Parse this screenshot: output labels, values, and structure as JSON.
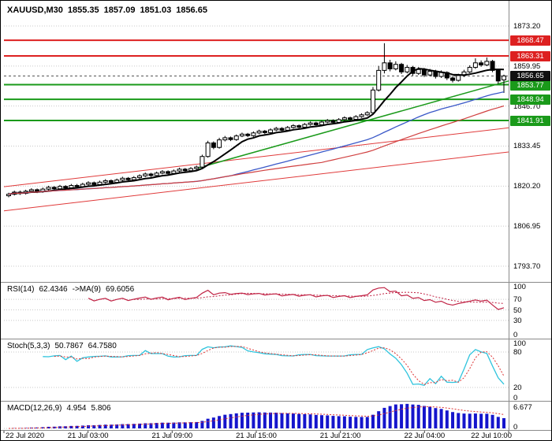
{
  "title": {
    "symbol": "XAUUSD,M30",
    "open": "1855.35",
    "high": "1857.09",
    "low": "1851.03",
    "close": "1856.65"
  },
  "colors": {
    "resistance": "#dd2020",
    "support": "#1a9a1a",
    "current": "#101010",
    "grid": "#c8c8c8",
    "candle_up": "#ffffff",
    "candle_down": "#000000",
    "candle_outline": "#000000"
  },
  "time_axis": {
    "labels": [
      "22 Jul 2020",
      "21 Jul 03:00",
      "21 Jul 09:00",
      "21 Jul 15:00",
      "21 Jul 21:00",
      "22 Jul 04:00",
      "22 Jul 10:00"
    ]
  },
  "chart_data": {
    "type": "candlestick",
    "symbol": "XAUUSD",
    "timeframe": "M30",
    "main": {
      "price_min": 1789.0,
      "price_max": 1880.5,
      "axis_labels": [
        "1873.20",
        "1859.95",
        "1846.70",
        "1833.45",
        "1820.20",
        "1806.95",
        "1793.70"
      ],
      "levels": {
        "resistance": [
          {
            "price": 1868.47,
            "label": "1868.47"
          },
          {
            "price": 1863.31,
            "label": "1863.31"
          }
        ],
        "support": [
          {
            "price": 1853.77,
            "label": "1853.77"
          },
          {
            "price": 1848.94,
            "label": "1848.94"
          },
          {
            "price": 1841.91,
            "label": "1841.91"
          }
        ],
        "current": {
          "price": 1856.65,
          "label": "1856.65"
        }
      },
      "trendlines": [
        {
          "x1": 0,
          "p1": 1820.0,
          "x2": 1,
          "p2": 1839.5,
          "color": "#e03a3a",
          "width": 1
        },
        {
          "x1": 0,
          "p1": 1812.0,
          "x2": 1,
          "p2": 1831.5,
          "color": "#e03a3a",
          "width": 1
        },
        {
          "x1": 0.38,
          "p1": 1826.0,
          "x2": 1,
          "p2": 1855.0,
          "color": "#1a9a1a",
          "width": 1.5
        }
      ],
      "moving_averages": [
        {
          "period": 8,
          "color": "#000000",
          "width": 2
        },
        {
          "period": 40,
          "color": "#3a58c8",
          "width": 1.3
        },
        {
          "period": 56,
          "color": "#d04040",
          "width": 1.2
        }
      ],
      "candles": [
        [
          1817.0,
          1818.0,
          1816.5,
          1817.5
        ],
        [
          1817.5,
          1818.7,
          1817.1,
          1818.2
        ],
        [
          1818.2,
          1818.7,
          1817.3,
          1817.8
        ],
        [
          1817.8,
          1819.0,
          1817.4,
          1818.5
        ],
        [
          1818.5,
          1819.5,
          1818.1,
          1819.0
        ],
        [
          1819.0,
          1819.4,
          1817.9,
          1818.4
        ],
        [
          1818.4,
          1819.7,
          1818.0,
          1819.2
        ],
        [
          1819.2,
          1820.3,
          1818.8,
          1819.8
        ],
        [
          1819.8,
          1820.2,
          1818.9,
          1819.3
        ],
        [
          1819.3,
          1820.6,
          1818.9,
          1820.1
        ],
        [
          1820.1,
          1820.5,
          1819.2,
          1819.6
        ],
        [
          1819.6,
          1820.9,
          1819.2,
          1820.4
        ],
        [
          1820.4,
          1820.9,
          1819.5,
          1820.0
        ],
        [
          1820.0,
          1821.3,
          1819.6,
          1820.8
        ],
        [
          1820.8,
          1821.8,
          1820.4,
          1821.3
        ],
        [
          1821.3,
          1821.7,
          1820.2,
          1820.7
        ],
        [
          1820.7,
          1822.0,
          1820.3,
          1821.5
        ],
        [
          1821.5,
          1822.5,
          1821.1,
          1822.0
        ],
        [
          1822.0,
          1822.4,
          1820.9,
          1821.4
        ],
        [
          1821.4,
          1822.7,
          1821.0,
          1822.2
        ],
        [
          1822.2,
          1823.3,
          1821.8,
          1822.8
        ],
        [
          1822.8,
          1823.2,
          1821.8,
          1822.3
        ],
        [
          1822.3,
          1823.5,
          1821.9,
          1823.0
        ],
        [
          1823.0,
          1824.1,
          1822.6,
          1823.6
        ],
        [
          1823.6,
          1824.7,
          1823.2,
          1824.2
        ],
        [
          1824.2,
          1824.6,
          1823.2,
          1823.7
        ],
        [
          1823.7,
          1825.0,
          1823.3,
          1824.5
        ],
        [
          1824.5,
          1825.5,
          1824.1,
          1825.0
        ],
        [
          1825.0,
          1825.4,
          1823.9,
          1824.4
        ],
        [
          1824.4,
          1825.7,
          1824.0,
          1825.2
        ],
        [
          1825.2,
          1826.3,
          1824.8,
          1825.8
        ],
        [
          1825.8,
          1826.2,
          1824.8,
          1825.3
        ],
        [
          1825.3,
          1826.5,
          1824.9,
          1826.0
        ],
        [
          1826.0,
          1827.0,
          1825.6,
          1826.5
        ],
        [
          1826.5,
          1830.6,
          1826.2,
          1830.0
        ],
        [
          1830.0,
          1835.2,
          1829.6,
          1834.5
        ],
        [
          1834.5,
          1835.0,
          1832.4,
          1833.0
        ],
        [
          1833.0,
          1836.2,
          1832.6,
          1835.5
        ],
        [
          1835.5,
          1836.8,
          1835.0,
          1836.2
        ],
        [
          1836.2,
          1836.6,
          1835.1,
          1835.6
        ],
        [
          1835.6,
          1837.3,
          1835.2,
          1836.8
        ],
        [
          1836.8,
          1837.9,
          1836.4,
          1837.4
        ],
        [
          1837.4,
          1837.8,
          1836.4,
          1836.9
        ],
        [
          1836.9,
          1838.3,
          1836.5,
          1837.8
        ],
        [
          1837.8,
          1838.9,
          1837.4,
          1838.4
        ],
        [
          1838.4,
          1838.8,
          1837.4,
          1837.9
        ],
        [
          1837.9,
          1839.3,
          1837.5,
          1838.8
        ],
        [
          1838.8,
          1839.8,
          1838.4,
          1839.3
        ],
        [
          1839.3,
          1839.7,
          1838.2,
          1838.7
        ],
        [
          1838.7,
          1840.1,
          1838.3,
          1839.6
        ],
        [
          1839.6,
          1840.7,
          1839.2,
          1840.2
        ],
        [
          1840.2,
          1840.6,
          1839.2,
          1839.7
        ],
        [
          1839.7,
          1841.1,
          1839.3,
          1840.6
        ],
        [
          1840.6,
          1841.6,
          1840.2,
          1841.1
        ],
        [
          1841.1,
          1841.5,
          1840.0,
          1840.5
        ],
        [
          1840.5,
          1841.9,
          1840.1,
          1841.4
        ],
        [
          1841.4,
          1842.4,
          1841.0,
          1841.9
        ],
        [
          1841.9,
          1842.3,
          1840.8,
          1841.3
        ],
        [
          1841.3,
          1842.7,
          1840.9,
          1842.2
        ],
        [
          1842.2,
          1843.3,
          1841.8,
          1842.8
        ],
        [
          1842.8,
          1843.2,
          1841.8,
          1842.3
        ],
        [
          1842.3,
          1843.7,
          1841.9,
          1843.2
        ],
        [
          1843.2,
          1844.3,
          1842.8,
          1843.8
        ],
        [
          1843.8,
          1845.0,
          1843.4,
          1844.5
        ],
        [
          1844.5,
          1853.0,
          1844.0,
          1852.0
        ],
        [
          1852.0,
          1860.0,
          1851.5,
          1858.5
        ],
        [
          1858.5,
          1867.5,
          1857.5,
          1861.0
        ],
        [
          1861.0,
          1862.0,
          1858.2,
          1859.0
        ],
        [
          1859.0,
          1861.5,
          1858.5,
          1860.5
        ],
        [
          1860.5,
          1861.0,
          1857.3,
          1858.0
        ],
        [
          1858.0,
          1860.3,
          1857.5,
          1859.5
        ],
        [
          1859.5,
          1860.0,
          1856.8,
          1857.5
        ],
        [
          1857.5,
          1859.6,
          1857.0,
          1858.8
        ],
        [
          1858.8,
          1859.3,
          1856.3,
          1857.0
        ],
        [
          1857.0,
          1859.0,
          1856.5,
          1858.2
        ],
        [
          1858.2,
          1858.7,
          1855.8,
          1856.5
        ],
        [
          1856.5,
          1858.5,
          1856.0,
          1857.8
        ],
        [
          1857.8,
          1858.2,
          1855.3,
          1856.0
        ],
        [
          1856.0,
          1856.6,
          1854.5,
          1855.2
        ],
        [
          1855.2,
          1857.4,
          1854.8,
          1856.8
        ],
        [
          1856.8,
          1858.7,
          1856.3,
          1858.0
        ],
        [
          1858.0,
          1860.2,
          1857.6,
          1859.5
        ],
        [
          1859.5,
          1862.5,
          1859.0,
          1861.0
        ],
        [
          1861.0,
          1861.8,
          1859.7,
          1860.3
        ],
        [
          1860.3,
          1862.8,
          1859.9,
          1861.5
        ],
        [
          1861.5,
          1862.0,
          1857.9,
          1858.5
        ],
        [
          1858.5,
          1859.0,
          1854.0,
          1855.0
        ],
        [
          1855.35,
          1857.09,
          1851.03,
          1856.65
        ]
      ]
    },
    "indicators": {
      "rsi": {
        "name": "RSI(14)",
        "value": "62.4346",
        "ma_name": "->MA(9)",
        "ma_value": "69.6056",
        "period": 14,
        "ma_period": 9,
        "axis": [
          "100",
          "70",
          "50",
          "30",
          "0"
        ],
        "grid_levels": [
          70,
          50,
          30
        ],
        "color": "#c02244"
      },
      "stoch": {
        "name": "Stoch(5,3,3)",
        "k": "50.7867",
        "d": "64.7580",
        "axis": [
          "100",
          "80",
          "20",
          "0"
        ],
        "grid_levels": [
          80,
          20
        ],
        "k_color": "#2fc4dd",
        "d_color": "#dd3333"
      },
      "macd": {
        "name": "MACD(12,26,9)",
        "value": "4.954",
        "signal": "5.806",
        "axis_top": "6.677",
        "axis_zero": "0",
        "bar_color": "#1515cc",
        "signal_color": "#dd3333"
      }
    }
  }
}
